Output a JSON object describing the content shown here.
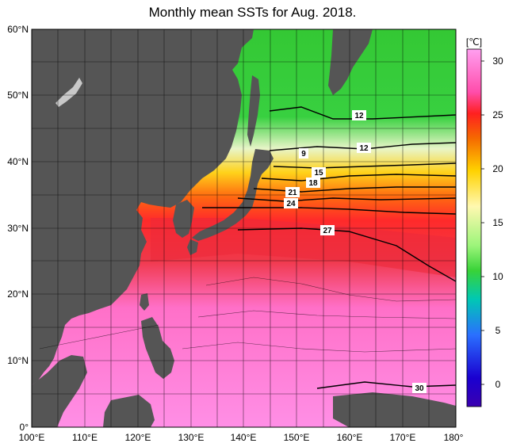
{
  "title": "Monthly mean SSTs for Aug. 2018.",
  "colorbar": {
    "unit": "[℃]",
    "ticks": [
      "30",
      "25",
      "20",
      "15",
      "10",
      "5",
      "0"
    ],
    "gradient": [
      "#ff9ff0",
      "#ff4dab",
      "#ff2020",
      "#f56a00",
      "#ffd200",
      "#fff8b0",
      "#9cf57a",
      "#38d238",
      "#00c8b4",
      "#2a6fff",
      "#1a00d0",
      "#3a00b0"
    ]
  },
  "map": {
    "lat_labels": [
      "60°N",
      "50°N",
      "40°N",
      "30°N",
      "20°N",
      "10°N",
      "0°"
    ],
    "lon_labels": [
      "100°E",
      "110°E",
      "120°E",
      "130°E",
      "140°E",
      "150°E",
      "160°E",
      "170°E",
      "180°"
    ],
    "land_color": "#555555",
    "isotherm_labels": [
      "12",
      "12",
      "9",
      "15",
      "18",
      "21",
      "24",
      "27",
      "30"
    ]
  }
}
